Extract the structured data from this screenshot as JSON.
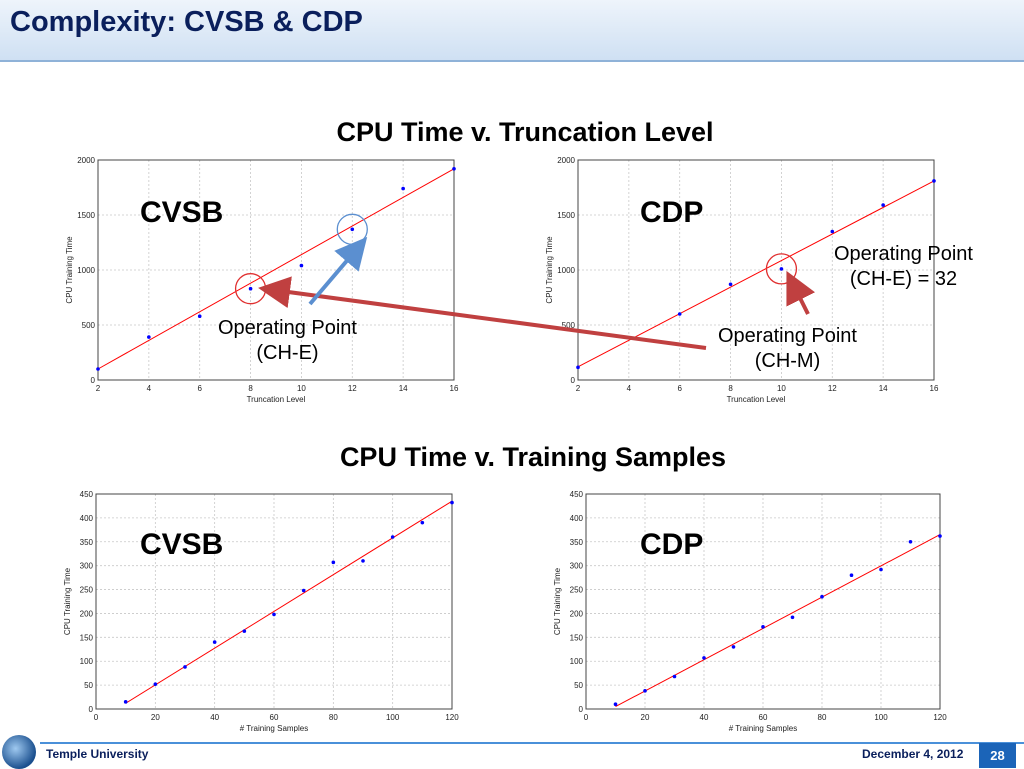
{
  "slide": {
    "title": "Complexity: CVSB & CDP",
    "footer_left": "Temple University",
    "footer_date": "December 4, 2012",
    "page_number": "28"
  },
  "sections": {
    "top": "CPU Time v. Truncation Level",
    "bottom": "CPU Time v. Training Samples"
  },
  "annotations": {
    "cvsb_op_line1": "Operating Point",
    "cvsb_op_line2": "(CH-E)",
    "cdp_chm_line1": "Operating Point",
    "cdp_chm_line2": "(CH-M)",
    "cdp_che_line1": "Operating Point",
    "cdp_che_line2": "(CH-E) = 32"
  },
  "colors": {
    "points": "#0000ff",
    "fit": "#ff0000",
    "circle": "#e03030",
    "arrow_red": "#c04040",
    "arrow_blue": "#5b8fd0"
  },
  "chart_data": [
    {
      "type": "scatter",
      "label": "CVSB",
      "xlabel": "Truncation Level",
      "ylabel": "CPU Training Time",
      "xlim": [
        2,
        16
      ],
      "ylim": [
        0,
        2000
      ],
      "xticks": [
        2,
        4,
        6,
        8,
        10,
        12,
        14,
        16
      ],
      "yticks": [
        0,
        500,
        1000,
        1500,
        2000
      ],
      "grid": true,
      "x": [
        2,
        4,
        6,
        8,
        10,
        12,
        14,
        16
      ],
      "y": [
        100,
        390,
        580,
        830,
        1040,
        1370,
        1740,
        1920
      ],
      "fit": [
        [
          2,
          100
        ],
        [
          16,
          1920
        ]
      ],
      "highlight": [
        8,
        12
      ]
    },
    {
      "type": "scatter",
      "label": "CDP",
      "xlabel": "Truncation Level",
      "ylabel": "CPU Training Time",
      "xlim": [
        2,
        16
      ],
      "ylim": [
        0,
        2000
      ],
      "xticks": [
        2,
        4,
        6,
        8,
        10,
        12,
        14,
        16
      ],
      "yticks": [
        0,
        500,
        1000,
        1500,
        2000
      ],
      "grid": true,
      "x": [
        2,
        6,
        8,
        10,
        12,
        14,
        16
      ],
      "y": [
        115,
        600,
        870,
        1010,
        1350,
        1590,
        1810
      ],
      "fit": [
        [
          2,
          120
        ],
        [
          16,
          1810
        ]
      ],
      "highlight": [
        10
      ]
    },
    {
      "type": "scatter",
      "label": "CVSB",
      "xlabel": "# Training Samples",
      "ylabel": "CPU Training Time",
      "xlim": [
        0,
        120
      ],
      "ylim": [
        0,
        450
      ],
      "xticks": [
        0,
        20,
        40,
        60,
        80,
        100,
        120
      ],
      "yticks": [
        0,
        50,
        100,
        150,
        200,
        250,
        300,
        350,
        400,
        450
      ],
      "grid": true,
      "x": [
        10,
        20,
        30,
        40,
        50,
        60,
        70,
        80,
        90,
        100,
        110,
        120
      ],
      "y": [
        15,
        52,
        88,
        140,
        163,
        198,
        248,
        307,
        310,
        360,
        390,
        432
      ],
      "fit": [
        [
          10,
          12
        ],
        [
          120,
          435
        ]
      ],
      "highlight": []
    },
    {
      "type": "scatter",
      "label": "CDP",
      "xlabel": "# Training Samples",
      "ylabel": "CPU Training Time",
      "xlim": [
        0,
        120
      ],
      "ylim": [
        0,
        450
      ],
      "xticks": [
        0,
        20,
        40,
        60,
        80,
        100,
        120
      ],
      "yticks": [
        0,
        50,
        100,
        150,
        200,
        250,
        300,
        350,
        400,
        450
      ],
      "grid": true,
      "x": [
        10,
        20,
        30,
        40,
        50,
        60,
        70,
        80,
        90,
        100,
        110,
        120
      ],
      "y": [
        10,
        38,
        68,
        107,
        130,
        172,
        192,
        235,
        280,
        292,
        350,
        362
      ],
      "fit": [
        [
          10,
          5
        ],
        [
          120,
          365
        ]
      ],
      "highlight": []
    }
  ]
}
